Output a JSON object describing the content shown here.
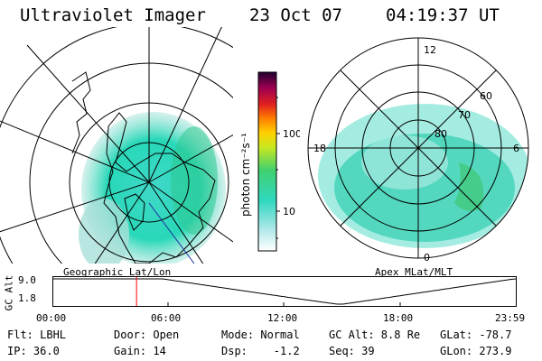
{
  "header": {
    "instrument": "Ultraviolet Imager",
    "date": "23 Oct 07",
    "time": "04:19:37 UT"
  },
  "left_map": {
    "caption": "Geographic Lat/Lon"
  },
  "right_map": {
    "caption": "Apex MLat/MLT",
    "mlt_labels": [
      "12",
      "18",
      "6",
      "0"
    ],
    "mlat_labels": [
      "60",
      "70",
      "80"
    ]
  },
  "colorbar": {
    "unit_label": "photon cm⁻²s⁻¹",
    "tick_labels": [
      "100",
      "10"
    ],
    "scale": "log"
  },
  "altitude_plot": {
    "ylabel": "GC Alt",
    "y_ticks": [
      "9.0",
      "1.8"
    ],
    "x_ticks": [
      "00:00",
      "06:00",
      "12:00",
      "18:00",
      "23:59"
    ],
    "current_time_fraction": 0.18,
    "marker_color": "#ff0000"
  },
  "status": {
    "filter": "Flt: LBHL",
    "ip": "IP: 36.0",
    "door": "Door: Open",
    "gain": "Gain: 14",
    "mode": "Mode: Normal",
    "dsp": "Dsp:    -1.2",
    "gc_alt": "GC Alt: 8.8 Re",
    "seq": "Seq: 39",
    "glat": "GLat: -78.7",
    "glon": "GLon: 273.9"
  }
}
